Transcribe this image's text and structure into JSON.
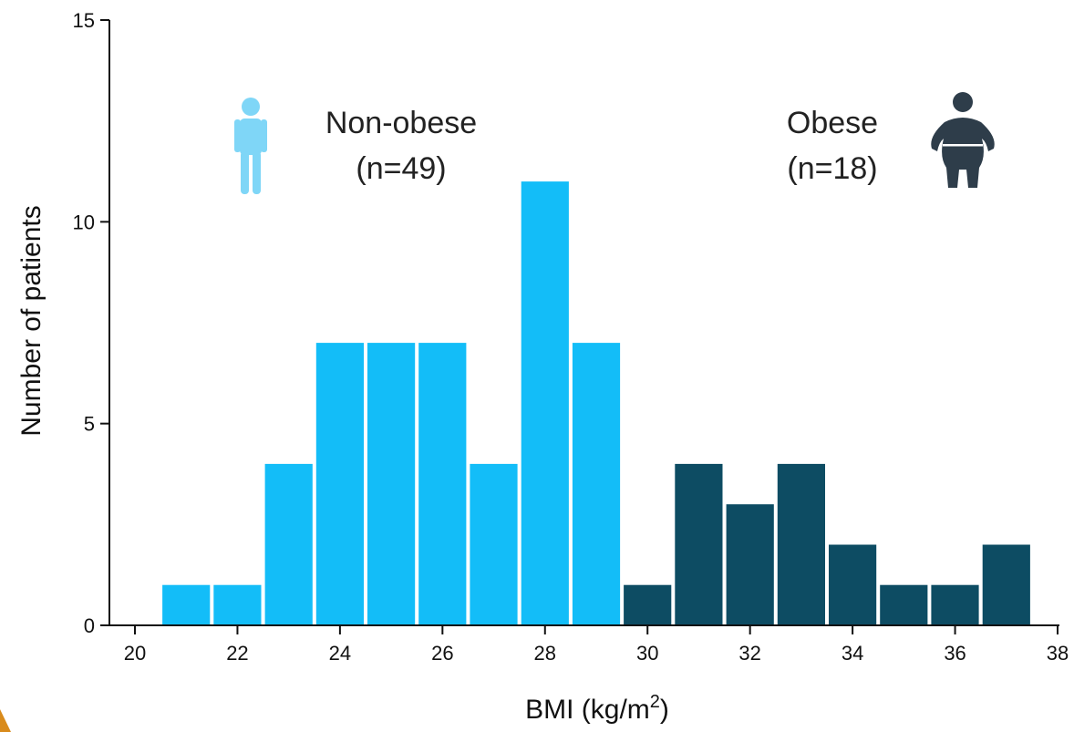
{
  "chart_data": {
    "type": "bar",
    "xlabel_prefix": "BMI (kg/m",
    "xlabel_sup": "2",
    "xlabel_suffix": ")",
    "ylabel": "Number of patients",
    "xlim": [
      20,
      38
    ],
    "ylim": [
      0,
      15
    ],
    "x_ticks": [
      "20",
      "22",
      "24",
      "26",
      "28",
      "30",
      "32",
      "34",
      "36",
      "38"
    ],
    "y_ticks": [
      "0",
      "5",
      "10",
      "15"
    ],
    "grid": false,
    "colors": {
      "non_obese": "#13bdf8",
      "obese": "#0d4c63",
      "non_obese_icon": "#7fd6f7",
      "obese_icon": "#2e3d4a"
    },
    "series": [
      {
        "name": "Non-obese",
        "bins": [
          {
            "x": 21,
            "value": 1
          },
          {
            "x": 22,
            "value": 1
          },
          {
            "x": 23,
            "value": 4
          },
          {
            "x": 24,
            "value": 7
          },
          {
            "x": 25,
            "value": 7
          },
          {
            "x": 26,
            "value": 7
          },
          {
            "x": 27,
            "value": 4
          },
          {
            "x": 28,
            "value": 11
          },
          {
            "x": 29,
            "value": 7
          }
        ]
      },
      {
        "name": "Obese",
        "bins": [
          {
            "x": 30,
            "value": 1
          },
          {
            "x": 31,
            "value": 4
          },
          {
            "x": 32,
            "value": 3
          },
          {
            "x": 33,
            "value": 4
          },
          {
            "x": 34,
            "value": 2
          },
          {
            "x": 35,
            "value": 1
          },
          {
            "x": 36,
            "value": 1
          },
          {
            "x": 37,
            "value": 2
          }
        ]
      }
    ]
  },
  "groups": {
    "non_obese": {
      "label": "Non-obese",
      "count": "(n=49)",
      "icon": "person-icon"
    },
    "obese": {
      "label": "Obese",
      "count": "(n=18)",
      "icon": "obese-person-icon"
    }
  }
}
